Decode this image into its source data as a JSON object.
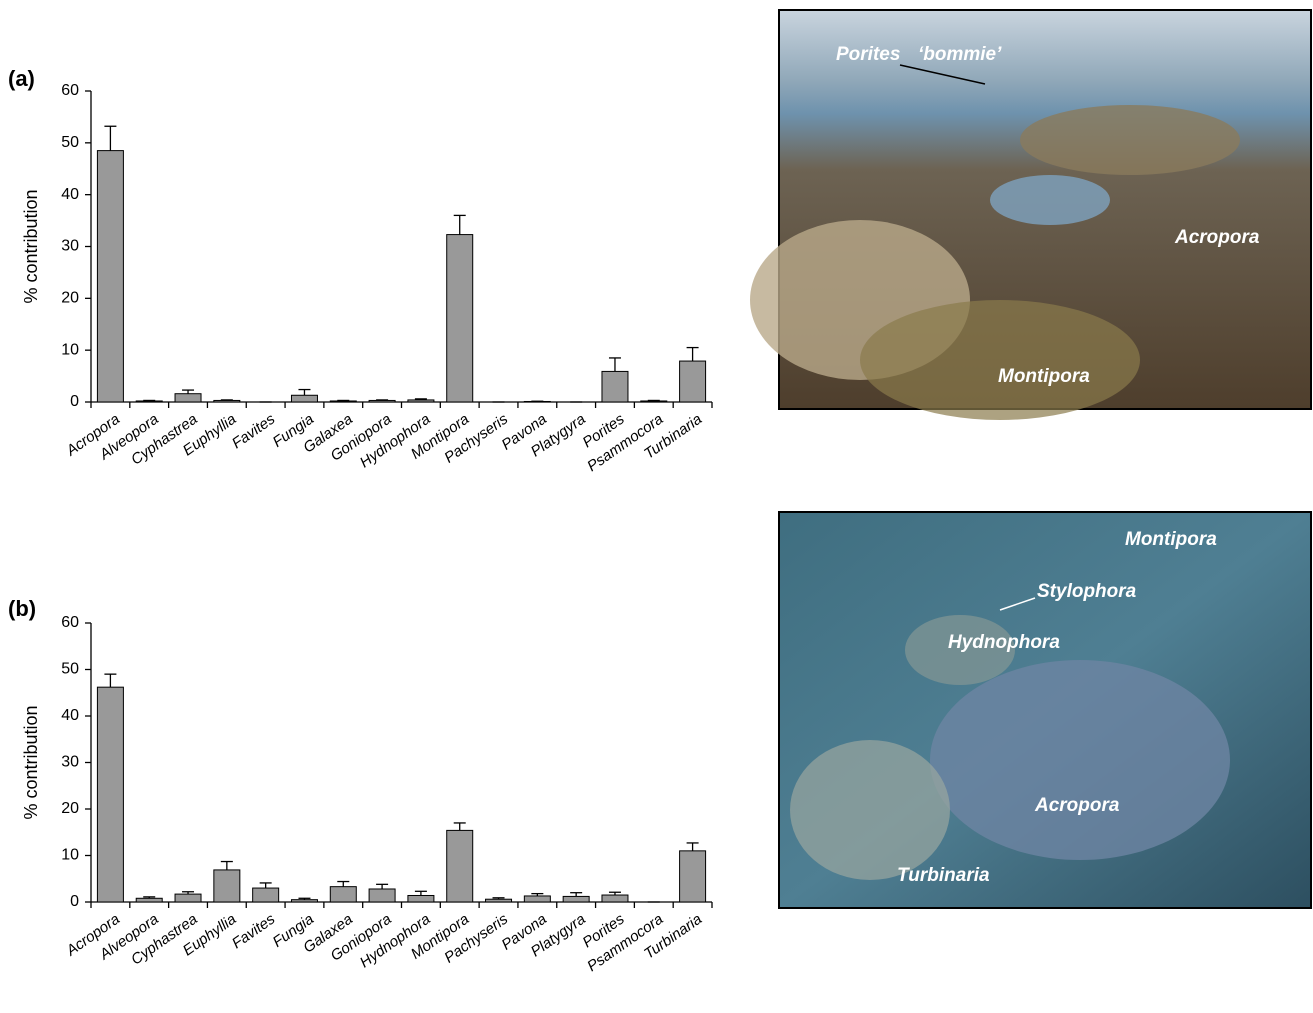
{
  "chart_data": [
    {
      "type": "bar",
      "panel_label": "(a)",
      "y_label": "% contribution",
      "categories": [
        "Acropora",
        "Alveopora",
        "Cyphastrea",
        "Euphyllia",
        "Favites",
        "Fungia",
        "Galaxea",
        "Goniopora",
        "Hydnophora",
        "Montipora",
        "Pachyseris",
        "Pavona",
        "Platygyra",
        "Porites",
        "Psammocora",
        "Turbinaria"
      ],
      "values": [
        48.5,
        0.2,
        1.6,
        0.3,
        0,
        1.3,
        0.2,
        0.3,
        0.4,
        32.3,
        0,
        0.1,
        0,
        5.9,
        0.2,
        7.9
      ],
      "errors": [
        4.7,
        0.1,
        0.7,
        0.1,
        0,
        1.1,
        0.1,
        0.1,
        0.2,
        3.7,
        0,
        0.05,
        0,
        2.6,
        0.1,
        2.6
      ],
      "color": "#999999",
      "ylim": [
        0,
        60
      ],
      "yticks": [
        0,
        10,
        20,
        30,
        40,
        50,
        60
      ]
    },
    {
      "type": "bar",
      "panel_label": "(b)",
      "y_label": "% contribution",
      "categories": [
        "Acropora",
        "Alveopora",
        "Cyphastrea",
        "Euphyllia",
        "Favites",
        "Fungia",
        "Galaxea",
        "Goniopora",
        "Hydnophora",
        "Montipora",
        "Pachyseris",
        "Pavona",
        "Platygyra",
        "Porites",
        "Psammocora",
        "Turbinaria"
      ],
      "values": [
        46.2,
        0.8,
        1.7,
        6.9,
        3.0,
        0.5,
        3.3,
        2.8,
        1.4,
        15.4,
        0.6,
        1.3,
        1.2,
        1.5,
        0,
        11.0
      ],
      "errors": [
        2.8,
        0.3,
        0.5,
        1.8,
        1.1,
        0.3,
        1.1,
        1.0,
        0.9,
        1.6,
        0.3,
        0.5,
        0.8,
        0.6,
        0,
        1.7
      ],
      "color": "#999999",
      "ylim": [
        0,
        60
      ],
      "yticks": [
        0,
        10,
        20,
        30,
        40,
        50,
        60
      ]
    }
  ],
  "photos": [
    {
      "labels": [
        "Porites",
        "‘bommie’",
        "Acropora",
        "Montipora"
      ]
    },
    {
      "labels": [
        "Montipora",
        "Stylophora",
        "Hydnophora",
        "Acropora",
        "Turbinaria"
      ]
    }
  ]
}
